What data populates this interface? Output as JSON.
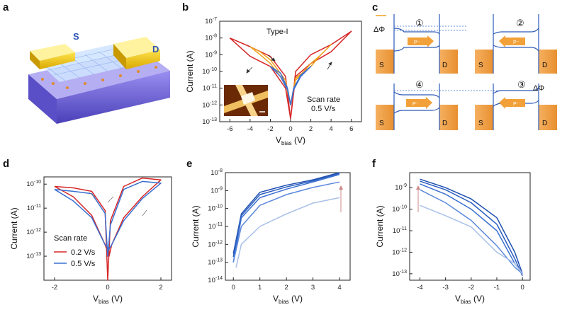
{
  "figure": {
    "panels": {
      "a": {
        "label": "a",
        "source_label": "S",
        "drain_label": "D"
      },
      "b": {
        "label": "b",
        "annotation": "Type-I",
        "scan_note_1": "Scan rate",
        "scan_note_2": "0.5 V/s"
      },
      "c": {
        "label": "c",
        "phi": "ΔΦ",
        "steps": [
          "①",
          "②",
          "④",
          "③"
        ],
        "s": "S",
        "d": "D"
      },
      "d": {
        "label": "d",
        "legend_title": "Scan rate"
      },
      "e": {
        "label": "e"
      },
      "f": {
        "label": "f"
      }
    },
    "colors": {
      "red": "#d62728",
      "blue": "#3a6fd0",
      "orange": "#f0a020",
      "gold": "#e8c23a",
      "lightblue": "#a8c0e8"
    }
  },
  "chart_data": [
    {
      "panel": "b",
      "type": "line",
      "title": "Type-I",
      "xlabel": "Vbias (V)",
      "ylabel": "Current (A)",
      "yscale": "log",
      "xlim": [
        -7,
        7
      ],
      "ylim": [
        1e-13,
        1e-07
      ],
      "xticks": [
        -6,
        -4,
        -2,
        0,
        2,
        4,
        6
      ],
      "yticks": [
        "10-13",
        "10-12",
        "10-11",
        "10-10",
        "10-9",
        "10-8",
        "10-7"
      ],
      "series": [
        {
          "color": "#d62728",
          "x": [
            -6,
            -4,
            -2,
            -0.5,
            0,
            0.5,
            2,
            4,
            6,
            4,
            2,
            0.5,
            0,
            -0.5,
            -2,
            -4,
            -6
          ],
          "y": [
            1e-08,
            3e-09,
            8e-10,
            5e-11,
            1.5e-13,
            5e-11,
            3e-10,
            1.5e-09,
            2.5e-08,
            4e-09,
            1e-09,
            1e-10,
            1.5e-13,
            1e-11,
            2e-10,
            8e-10,
            1e-08
          ]
        },
        {
          "color": "#f0a020",
          "x": [
            -4,
            -3,
            -2,
            -0.5,
            0,
            0.5,
            2,
            3,
            4,
            3,
            2,
            0.5,
            0,
            -0.5,
            -2,
            -3,
            -4
          ],
          "y": [
            3e-09,
            1.5e-09,
            5e-10,
            3e-11,
            1e-12,
            3e-11,
            3e-10,
            1e-09,
            4e-09,
            1e-09,
            2e-10,
            4e-11,
            1e-12,
            2e-11,
            3e-10,
            1e-09,
            3e-09
          ]
        },
        {
          "color": "#3a6fd0",
          "x": [
            -2,
            -1,
            -0.3,
            0,
            0.3,
            1,
            2,
            1,
            0.3,
            0,
            -0.3,
            -1,
            -2
          ],
          "y": [
            2e-10,
            5e-11,
            8e-12,
            1e-12,
            8e-12,
            5e-11,
            2e-10,
            6e-11,
            1e-11,
            1e-12,
            1e-11,
            8e-11,
            2e-10
          ]
        }
      ]
    },
    {
      "panel": "d",
      "type": "line",
      "xlabel": "Vbias (V)",
      "ylabel": "Current (A)",
      "yscale": "log",
      "xlim": [
        -2.4,
        2.4
      ],
      "ylim": [
        1e-14,
        2e-10
      ],
      "xticks": [
        -2,
        0,
        2
      ],
      "yticks": [
        "10-13",
        "10-12",
        "10-11",
        "10-10"
      ],
      "series": [
        {
          "name": "0.2 V/s",
          "color": "#d62728",
          "x": [
            -2,
            -1.3,
            -0.6,
            -0.1,
            0,
            0.1,
            0.6,
            1.3,
            2,
            1.3,
            0.6,
            0.15,
            0.05,
            -0.1,
            -0.6,
            -1.3,
            -2
          ],
          "y": [
            8e-11,
            7e-11,
            5e-11,
            8e-12,
            1e-14,
            3e-12,
            8e-11,
            1.8e-10,
            1.5e-10,
            3e-11,
            4e-12,
            3e-13,
            1e-13,
            3e-13,
            5e-12,
            3e-11,
            8e-11
          ]
        },
        {
          "name": "0.5 V/s",
          "color": "#3a6fd0",
          "x": [
            -2,
            -1.3,
            -0.6,
            -0.1,
            0,
            0.1,
            0.6,
            1.3,
            2,
            1.3,
            0.6,
            0.15,
            0.05,
            -0.1,
            -0.6,
            -1.3,
            -2
          ],
          "y": [
            6e-11,
            5e-11,
            4e-11,
            6e-12,
            1e-13,
            2e-12,
            6e-11,
            1.3e-10,
            1.1e-10,
            2.5e-11,
            3e-12,
            3e-13,
            2e-13,
            3e-13,
            4e-12,
            2e-11,
            6e-11
          ]
        }
      ]
    },
    {
      "panel": "e",
      "type": "line",
      "xlabel": "Vbias (V)",
      "ylabel": "Current (A)",
      "yscale": "log",
      "xlim": [
        -0.3,
        4.4
      ],
      "ylim": [
        1e-14,
        1e-08
      ],
      "xticks": [
        0,
        1,
        2,
        3,
        4
      ],
      "yticks": [
        "10-14",
        "10-13",
        "10-12",
        "10-11",
        "10-10",
        "10-9",
        "10-8"
      ],
      "series": [
        {
          "color": "#1f4fb0",
          "x": [
            0,
            0.3,
            1,
            2,
            3,
            4
          ],
          "y": [
            3e-13,
            5e-11,
            8e-10,
            2e-09,
            4e-09,
            1e-08
          ]
        },
        {
          "color": "#2a5ec0",
          "x": [
            0,
            0.3,
            1,
            2,
            3,
            4
          ],
          "y": [
            2e-13,
            4e-11,
            6e-10,
            1.6e-09,
            3.5e-09,
            9e-09
          ]
        },
        {
          "color": "#3a6fd0",
          "x": [
            0,
            0.3,
            1,
            2,
            3,
            4
          ],
          "y": [
            1e-13,
            3e-11,
            4e-10,
            1.2e-09,
            3e-09,
            8e-09
          ]
        },
        {
          "color": "#5a88dc",
          "x": [
            0,
            0.3,
            1,
            2,
            3,
            4
          ],
          "y": [
            1e-13,
            1e-11,
            1.5e-10,
            6e-10,
            1.5e-09,
            3e-09
          ]
        },
        {
          "color": "#a8c0e8",
          "x": [
            0.1,
            0.3,
            1,
            2,
            3,
            4
          ],
          "y": [
            5e-14,
            1e-12,
            1e-11,
            5e-11,
            2e-10,
            4e-10
          ]
        }
      ]
    },
    {
      "panel": "f",
      "type": "line",
      "xlabel": "Vbias (V)",
      "ylabel": "Current (A)",
      "yscale": "log",
      "xlim": [
        -4.4,
        0.3
      ],
      "ylim": [
        5e-14,
        5e-09
      ],
      "xticks": [
        -4,
        -3,
        -2,
        -1,
        0
      ],
      "yticks": [
        "10-13",
        "10-12",
        "10-11",
        "10-10",
        "10-9"
      ],
      "series": [
        {
          "color": "#1f4fb0",
          "x": [
            -4,
            -3,
            -2,
            -1,
            -0.3,
            0
          ],
          "y": [
            2.5e-09,
            1e-09,
            3e-10,
            4e-11,
            1e-12,
            1e-13
          ]
        },
        {
          "color": "#2a5ec0",
          "x": [
            -4,
            -3,
            -2,
            -1,
            -0.3,
            0
          ],
          "y": [
            2e-09,
            8e-10,
            2e-10,
            2e-11,
            5e-13,
            8e-14
          ]
        },
        {
          "color": "#3a6fd0",
          "x": [
            -4,
            -3,
            -2,
            -1,
            -0.3,
            0
          ],
          "y": [
            1.5e-09,
            5e-10,
            1e-10,
            1e-11,
            3e-13,
            1e-13
          ]
        },
        {
          "color": "#5a88dc",
          "x": [
            -4,
            -3,
            -2,
            -1,
            -0.3,
            0
          ],
          "y": [
            8e-10,
            2e-10,
            3e-11,
            2e-12,
            2e-13,
            1e-13
          ]
        },
        {
          "color": "#a8c0e8",
          "x": [
            -4,
            -3,
            -2,
            -1,
            -0.3,
            0
          ],
          "y": [
            1.5e-10,
            5e-11,
            1.5e-11,
            1e-12,
            3e-13,
            1e-13
          ]
        }
      ]
    }
  ]
}
